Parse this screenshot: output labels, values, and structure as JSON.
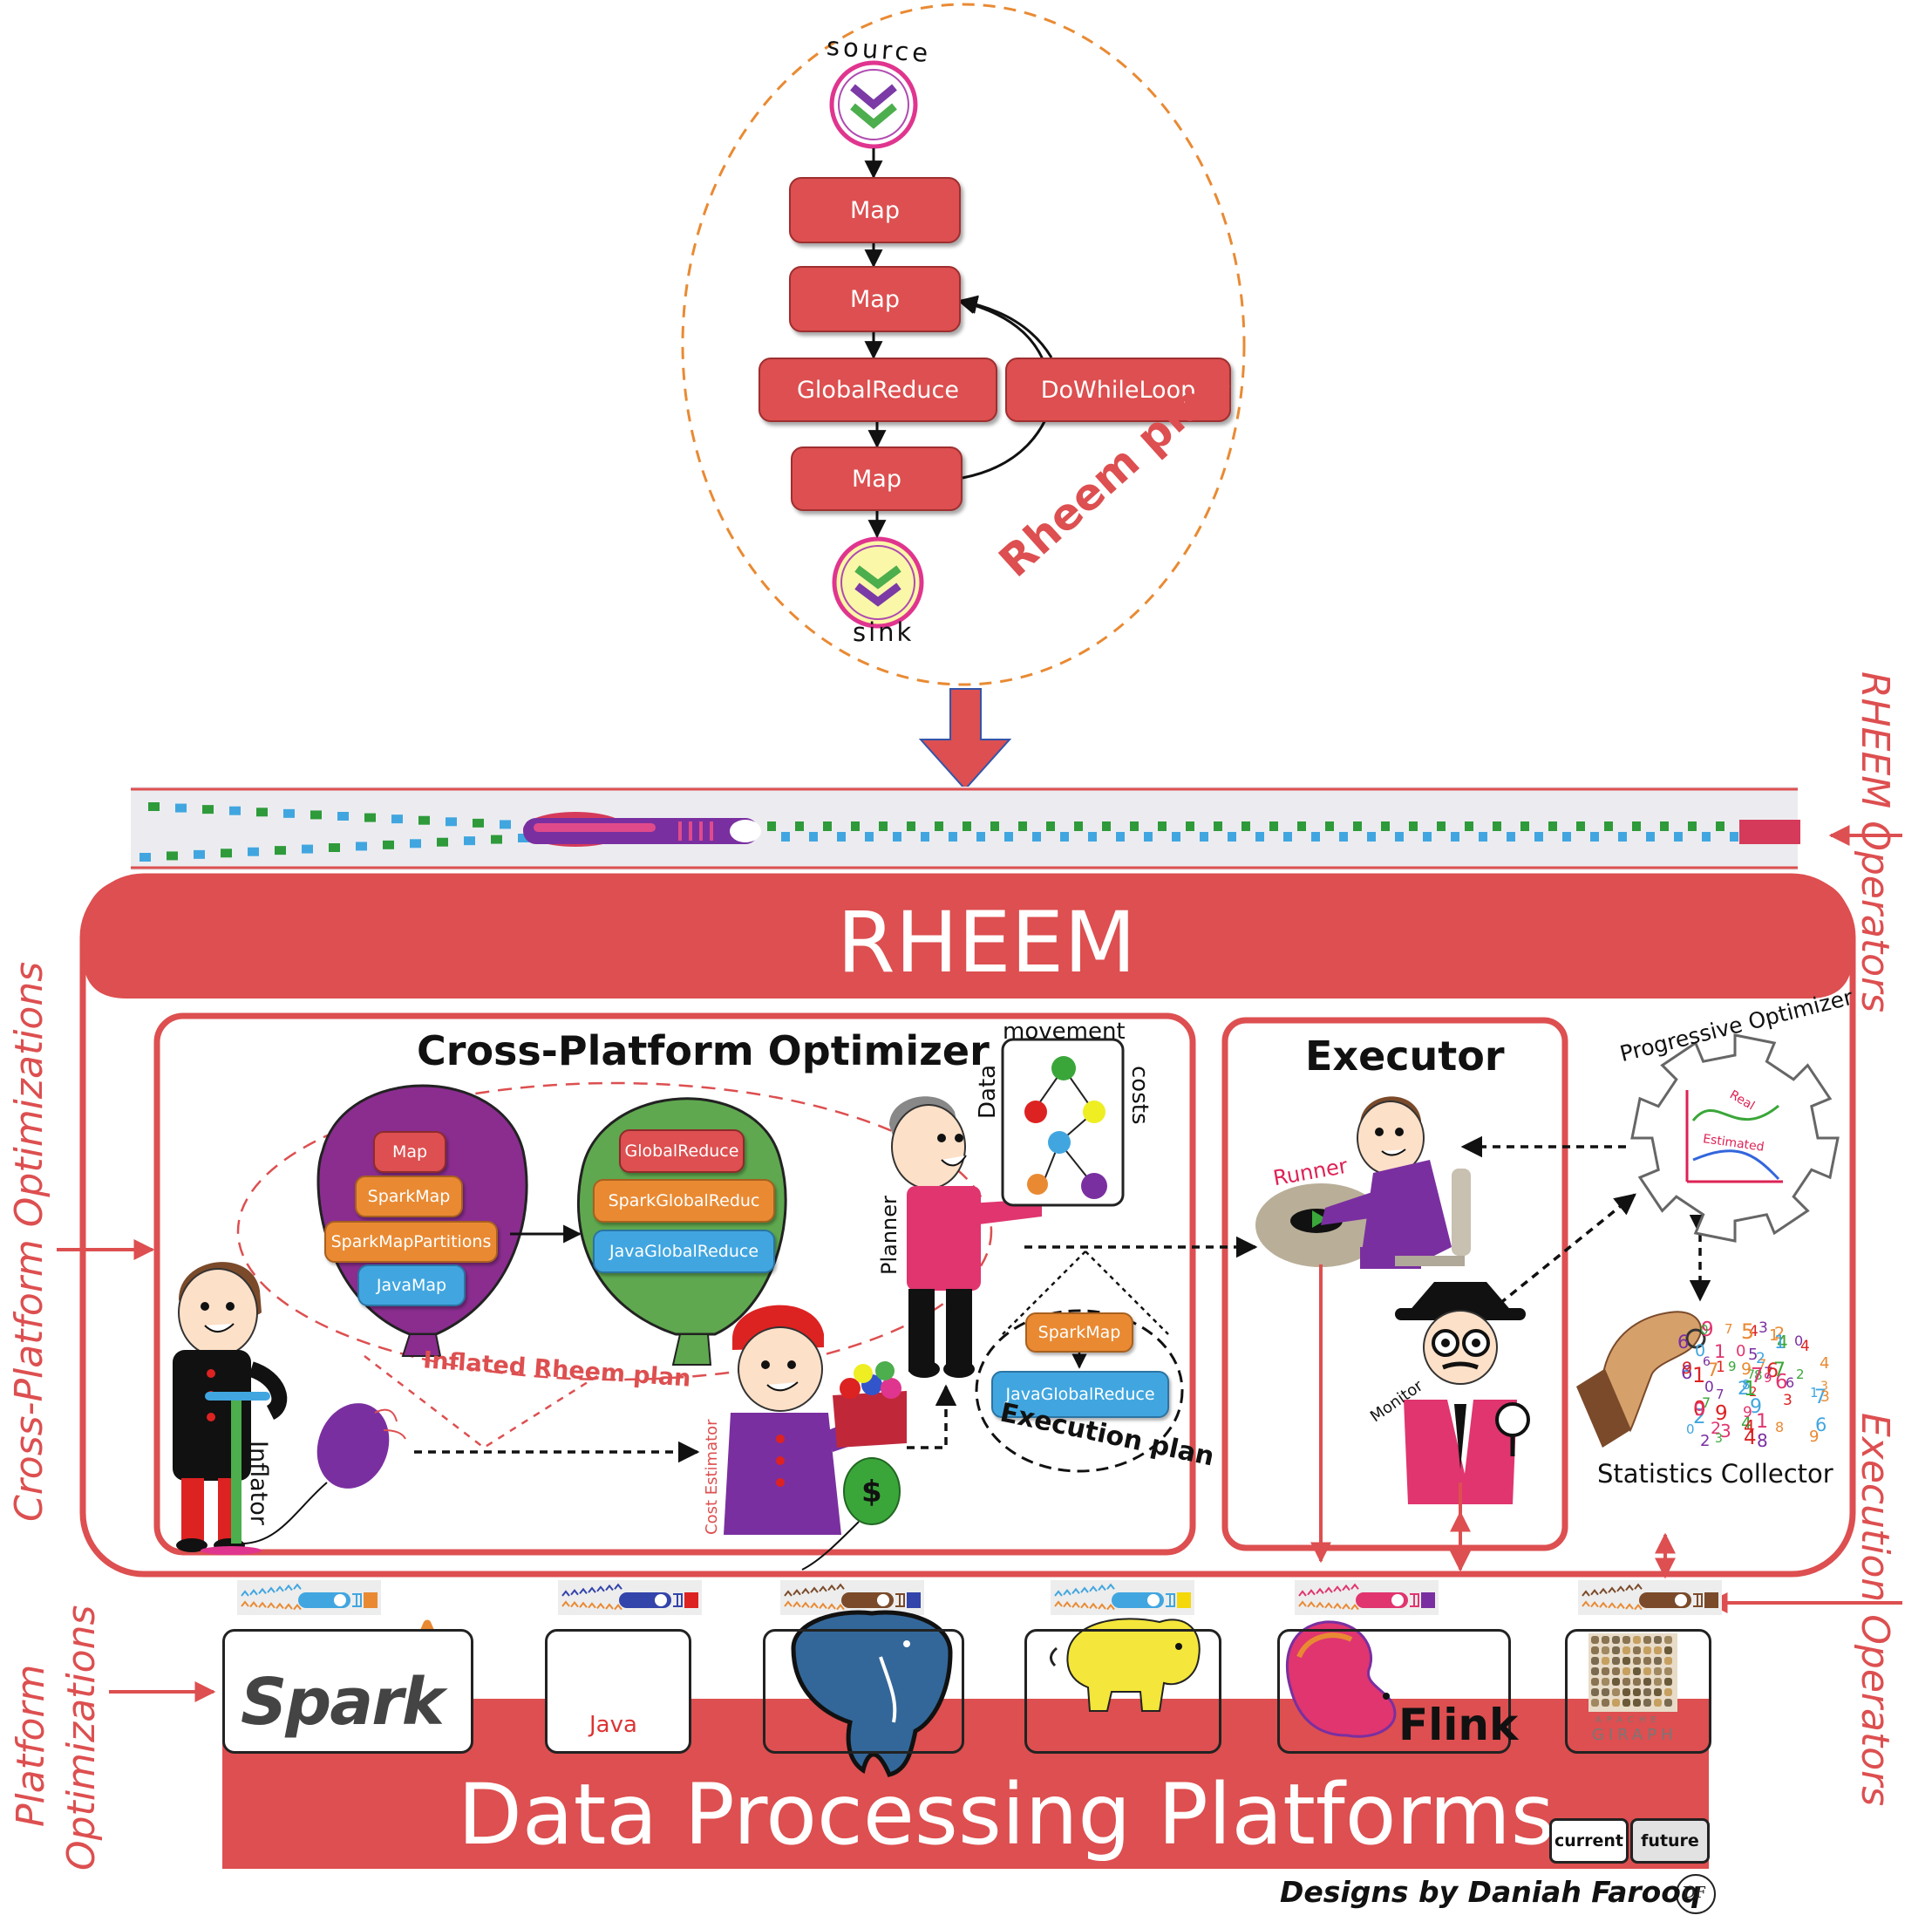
{
  "rheem_plan": {
    "source_label": "source",
    "sink_label": "sink",
    "operators": [
      "Map",
      "Map",
      "GlobalReduce",
      "DoWhileLoop",
      "Map"
    ],
    "plan_label": "Rheem plan"
  },
  "side_labels": {
    "rheem_operators": "RHEEM Operators",
    "cross_platform_optimizations": "Cross-Platform Optimizations",
    "execution_operators": "Execution Operators",
    "platform_optimizations_line1": "Platform",
    "platform_optimizations_line2": "Optimizations"
  },
  "rheem": {
    "title": "RHEEM"
  },
  "optimizer": {
    "title": "Cross-Platform Optimizer",
    "purple_balloon_ops": [
      "Map",
      "SparkMap",
      "SparkMapPartitions",
      "JavaMap"
    ],
    "green_balloon_ops": [
      "GlobalReduce",
      "SparkGlobalReduc",
      "JavaGlobalReduce"
    ],
    "inflated_plan_label": "Inflated Rheem plan",
    "inflator_label": "Inflator",
    "cost_estimator_label": "Cost Estimator",
    "planner_label": "Planner",
    "board_top": "movement",
    "board_left": "Data",
    "board_right": "costs",
    "execution_plan_ops": [
      "SparkMap",
      "JavaGlobalReduce"
    ],
    "execution_plan_label": "Execution plan"
  },
  "executor": {
    "title": "Executor",
    "runner_label": "Runner",
    "monitor_label": "Monitor"
  },
  "progressive_optimizer": {
    "title": "Progressive Optimizer",
    "real_label": "Real",
    "estimated_label": "Estimated"
  },
  "statistics_collector": {
    "label": "Statistics Collector"
  },
  "platforms": {
    "title": "Data Processing Platforms",
    "spark": "Spark",
    "java": "Java",
    "flink": "Flink",
    "giraph_top": "APACHE",
    "giraph_bottom": "GIRAPH",
    "legend_current": "current",
    "legend_future": "future"
  },
  "credit": {
    "text": "Designs by Daniah Farooq",
    "monogram": "DF"
  },
  "colors": {
    "brand_red": "#dd4f50",
    "purple": "#8a2d8f",
    "green": "#5fa84f",
    "blue": "#41a6e0",
    "orange": "#e98a33"
  }
}
